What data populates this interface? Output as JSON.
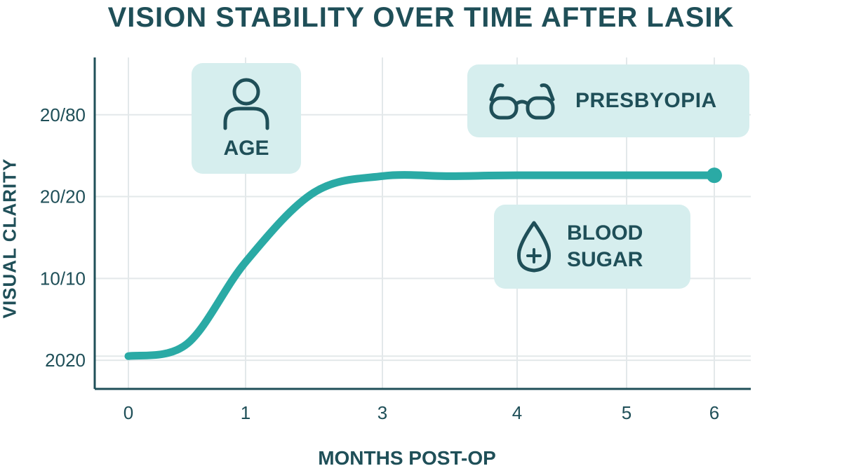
{
  "title": "VISION STABILITY OVER TIME AFTER LASIK",
  "ylabel": "VISUAL CLARITY",
  "xlabel": "MONTHS POST-OP",
  "colors": {
    "line": "#2aaaa5",
    "text": "#1f4f58",
    "card": "#d6eeee",
    "grid": "#e3e8ea",
    "axis": "#1f4f58"
  },
  "annotations": {
    "age": {
      "label": "AGE",
      "icon": "person-icon"
    },
    "presbyopia": {
      "label": "PRESBYOPIA",
      "icon": "glasses-icon"
    },
    "blood_sugar": {
      "line1": "BLOOD",
      "line2": "SUGAR",
      "icon": "blood-drop-plus-icon"
    }
  },
  "chart_data": {
    "type": "line",
    "title": "VISION STABILITY OVER TIME AFTER LASIK",
    "xlabel": "MONTHS POST-OP",
    "ylabel": "VISUAL CLARITY",
    "x_tick_labels": [
      "0",
      "1",
      "3",
      "4",
      "5",
      "6"
    ],
    "y_tick_labels": [
      "2020",
      "10/10",
      "20/20",
      "20/80"
    ],
    "y_levels": [
      0,
      1,
      2,
      3
    ],
    "ylim": [
      -0.35,
      3.7
    ],
    "grid": true,
    "series": [
      {
        "x_index": [
          0,
          0.5,
          1,
          1.5,
          2,
          2.5,
          3,
          4,
          5
        ],
        "y": [
          0.05,
          0.2,
          1.2,
          2.05,
          2.25,
          2.25,
          2.26,
          2.26,
          2.26
        ]
      }
    ]
  }
}
